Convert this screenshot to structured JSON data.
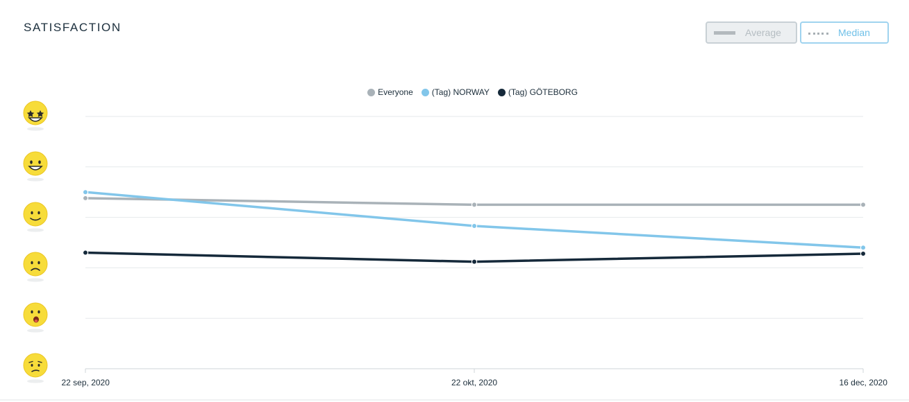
{
  "header": {
    "title": "SATISFACTION"
  },
  "toggles": {
    "average_label": "Average",
    "median_label": "Median",
    "active": "Median"
  },
  "legend": [
    {
      "label": "Everyone",
      "color": "#a9b2b8"
    },
    {
      "label": "(Tag) NORWAY",
      "color": "#82c6ea"
    },
    {
      "label": "(Tag) GÖTEBORG",
      "color": "#15293a"
    }
  ],
  "y_axis_icons": [
    "star-struck-face-icon",
    "grinning-face-icon",
    "slightly-smiling-face-icon",
    "slightly-frowning-face-icon",
    "surprised-open-mouth-face-icon",
    "confused-face-icon"
  ],
  "chart_data": {
    "type": "line",
    "x": [
      "22 sep, 2020",
      "22 okt, 2020",
      "16 dec, 2020"
    ],
    "ylim": [
      0,
      5
    ],
    "y_levels": 6,
    "grid": true,
    "legend_position": "top-center",
    "series": [
      {
        "name": "Everyone",
        "color": "#a9b2b8",
        "values": [
          3.38,
          3.25,
          3.25
        ]
      },
      {
        "name": "(Tag) NORWAY",
        "color": "#82c6ea",
        "values": [
          3.5,
          2.83,
          2.4
        ]
      },
      {
        "name": "(Tag) GÖTEBORG",
        "color": "#15293a",
        "values": [
          2.3,
          2.12,
          2.28
        ]
      }
    ]
  }
}
